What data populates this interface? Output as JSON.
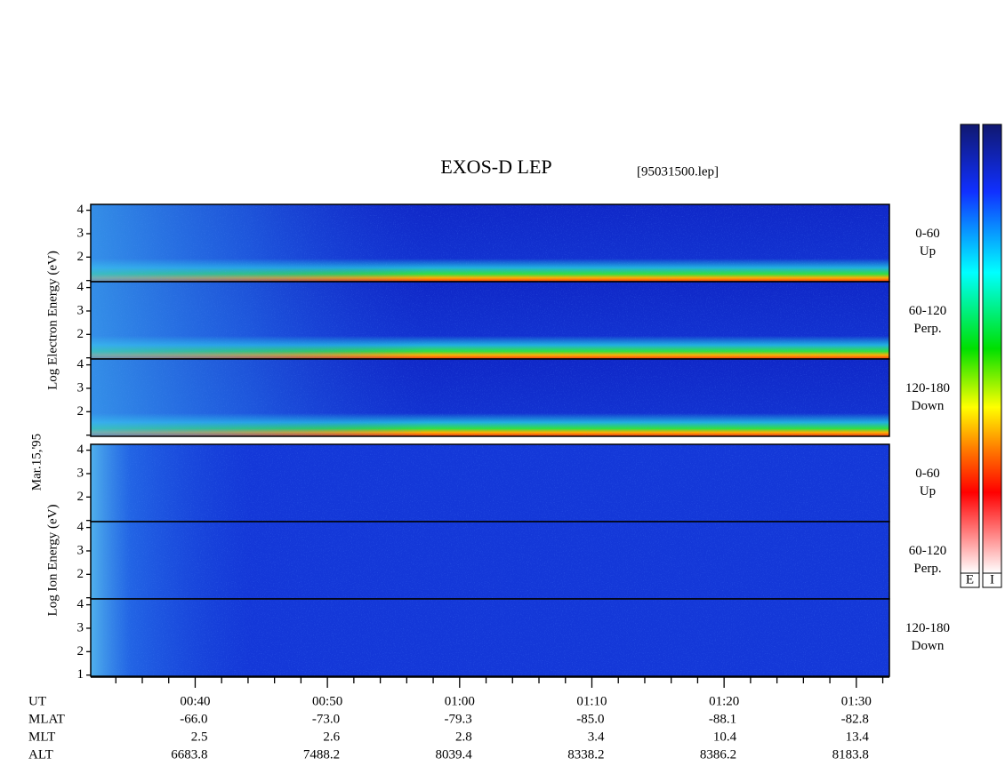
{
  "chart_data": {
    "type": "spectrogram",
    "title": "EXOS-D LEP",
    "file": "[95031500.lep]",
    "date": "Mar.15,'95",
    "xlim": [
      32.1,
      92.5
    ],
    "xticks": [
      {
        "value": 40,
        "label": "00:40"
      },
      {
        "value": 50,
        "label": "00:50"
      },
      {
        "value": 60,
        "label": "01:00"
      },
      {
        "value": 70,
        "label": "01:10"
      },
      {
        "value": 80,
        "label": "01:20"
      },
      {
        "value": 90,
        "label": "01:30"
      }
    ],
    "minor_xticks": [
      34,
      36,
      38,
      42,
      44,
      46,
      48,
      52,
      54,
      56,
      58,
      62,
      64,
      66,
      68,
      72,
      74,
      76,
      78,
      82,
      84,
      86,
      88,
      92
    ],
    "groups": [
      {
        "label": "Log  Electron  Energy (eV)",
        "panels": [
          {
            "ylim": [
              0.95,
              4.25
            ],
            "yticks": [
              2,
              3,
              4
            ],
            "minor_yticks": [
              1
            ],
            "angle": "0-60",
            "direction": "Up"
          },
          {
            "ylim": [
              0.95,
              4.25
            ],
            "yticks": [
              2,
              3,
              4
            ],
            "minor_yticks": [
              1
            ],
            "angle": "60-120",
            "direction": "Perp."
          },
          {
            "ylim": [
              0.95,
              4.25
            ],
            "yticks": [
              2,
              3,
              4
            ],
            "minor_yticks": [
              1
            ],
            "angle": "120-180",
            "direction": "Down"
          }
        ]
      },
      {
        "label": "Log  Ion  Energy (eV)",
        "panels": [
          {
            "ylim": [
              0.95,
              4.25
            ],
            "yticks": [
              2,
              3,
              4
            ],
            "minor_yticks": [
              1
            ],
            "angle": "0-60",
            "direction": "Up"
          },
          {
            "ylim": [
              0.95,
              4.25
            ],
            "yticks": [
              2,
              3,
              4
            ],
            "minor_yticks": [
              1
            ],
            "angle": "60-120",
            "direction": "Perp."
          },
          {
            "ylim": [
              0.95,
              4.25
            ],
            "yticks": [
              1,
              2,
              3,
              4
            ],
            "minor_yticks": [],
            "angle": "120-180",
            "direction": "Down"
          }
        ]
      }
    ],
    "ephemeris": {
      "row_labels": [
        "UT",
        "MLAT",
        "MLT",
        "ALT"
      ],
      "rows": [
        [
          "-66.0",
          "-73.0",
          "-79.3",
          "-85.0",
          "-88.1",
          "-82.8"
        ],
        [
          "2.5",
          "2.6",
          "2.8",
          "3.4",
          "10.4",
          "13.4"
        ],
        [
          "6683.8",
          "7488.2",
          "8039.4",
          "8338.2",
          "8386.2",
          "8183.8"
        ]
      ]
    },
    "colorbars": [
      "E",
      "I"
    ]
  }
}
